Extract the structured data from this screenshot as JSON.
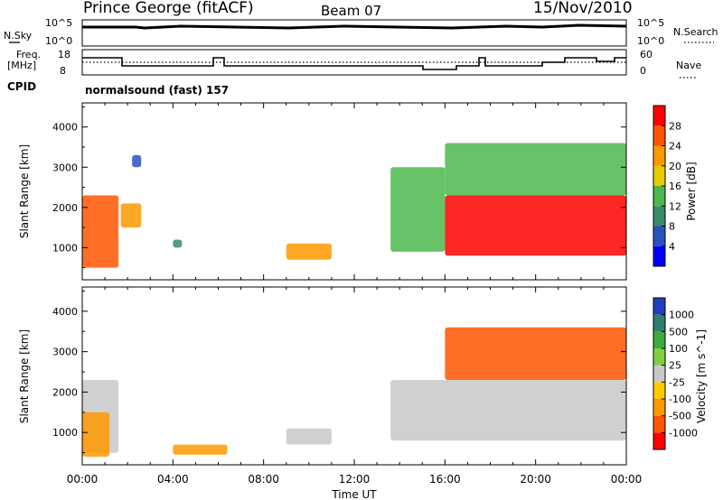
{
  "header": {
    "title": "Prince George (fitACF)",
    "beam": "Beam 07",
    "date": "15/Nov/2010"
  },
  "status_panel": {
    "nsky_label": "N.Sky",
    "nsky_ticks": [
      "10^5",
      "10^0"
    ],
    "nsearch_label": "N.Search",
    "nsearch_ticks": [
      "10^5",
      "10^0"
    ],
    "freq_label_1": "Freq.",
    "freq_label_2": "[MHz]",
    "freq_ticks": [
      "18",
      "8"
    ],
    "nave_label": "Nave",
    "nave_ticks": [
      "60",
      "0"
    ],
    "cpid_label": "CPID",
    "cpid_value": "normalsound (fast) 157"
  },
  "chart_data": [
    {
      "type": "heatmap",
      "name": "power",
      "ylabel": "Slant Range [km]",
      "yticks": [
        "1000",
        "2000",
        "3000",
        "4000"
      ],
      "ylim": [
        200,
        4600
      ],
      "colorbar_label": "Power [dB]",
      "colorbar_ticks": [
        "4",
        "8",
        "12",
        "16",
        "20",
        "24",
        "28"
      ],
      "colors": [
        "#0000ff",
        "#2a52be",
        "#3a8a6a",
        "#4db84d",
        "#e6cc00",
        "#ff9900",
        "#ff5500",
        "#ff0000"
      ],
      "regions": [
        {
          "t0": 0.0,
          "t1": 1.6,
          "r0": 500,
          "r1": 2300,
          "level": 6
        },
        {
          "t0": 1.7,
          "t1": 2.6,
          "r0": 1500,
          "r1": 2100,
          "level": 5
        },
        {
          "t0": 2.2,
          "t1": 2.6,
          "r0": 3000,
          "r1": 3300,
          "level": 1
        },
        {
          "t0": 4.0,
          "t1": 4.4,
          "r0": 1000,
          "r1": 1200,
          "level": 2
        },
        {
          "t0": 9.0,
          "t1": 11.0,
          "r0": 700,
          "r1": 1100,
          "level": 5
        },
        {
          "t0": 13.6,
          "t1": 16.0,
          "r0": 900,
          "r1": 3000,
          "level": 3
        },
        {
          "t0": 16.0,
          "t1": 24.0,
          "r0": 800,
          "r1": 2300,
          "level": 7
        },
        {
          "t0": 16.0,
          "t1": 24.0,
          "r0": 2300,
          "r1": 3600,
          "level": 3
        }
      ]
    },
    {
      "type": "heatmap",
      "name": "velocity",
      "ylabel": "Slant Range [km]",
      "yticks": [
        "1000",
        "2000",
        "3000",
        "4000"
      ],
      "ylim": [
        200,
        4600
      ],
      "xlabel": "Time UT",
      "xticks": [
        "00:00",
        "04:00",
        "08:00",
        "12:00",
        "16:00",
        "20:00",
        "00:00"
      ],
      "xlim": [
        0,
        24
      ],
      "colorbar_label": "Velocity [m s^-1]",
      "colorbar_ticks": [
        "1000",
        "500",
        "100",
        "25",
        "-25",
        "-100",
        "-500",
        "-1000"
      ],
      "colors": [
        "#1f3fbf",
        "#2f7f6f",
        "#3faa3f",
        "#7fcf3f",
        "#c8c8c8",
        "#ffcc00",
        "#ff9900",
        "#ff5500",
        "#ff0000"
      ],
      "regions": [
        {
          "t0": 0.0,
          "t1": 1.6,
          "r0": 500,
          "r1": 2300,
          "level": 4
        },
        {
          "t0": 0.0,
          "t1": 1.2,
          "r0": 400,
          "r1": 1500,
          "level": 6
        },
        {
          "t0": 4.0,
          "t1": 6.4,
          "r0": 450,
          "r1": 700,
          "level": 6
        },
        {
          "t0": 9.0,
          "t1": 11.0,
          "r0": 700,
          "r1": 1100,
          "level": 4
        },
        {
          "t0": 13.6,
          "t1": 24.0,
          "r0": 800,
          "r1": 2300,
          "level": 4
        },
        {
          "t0": 16.0,
          "t1": 24.0,
          "r0": 2300,
          "r1": 3600,
          "level": 7
        }
      ]
    }
  ]
}
